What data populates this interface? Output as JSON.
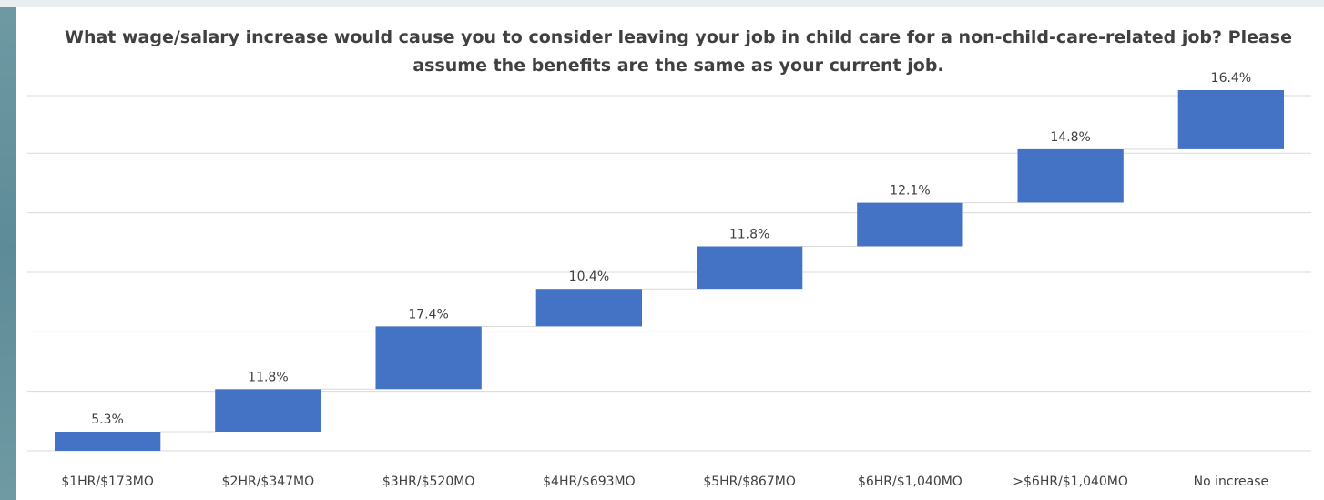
{
  "chart_data": {
    "type": "waterfall",
    "title": "What wage/salary increase would cause you to consider leaving your job in child care for a non-child-care-related job? Please assume the benefits are the same as your current job.",
    "categories": [
      "$1HR/$173MO",
      "$2HR/$347MO",
      "$3HR/$520MO",
      "$4HR/$693MO",
      "$5HR/$867MO",
      "$6HR/$1,040MO",
      ">$6HR/$1,040MO",
      "No increase"
    ],
    "values": [
      5.3,
      11.8,
      17.4,
      10.4,
      11.8,
      12.1,
      14.8,
      16.4
    ],
    "data_labels": [
      "5.3%",
      "11.8%",
      "17.4%",
      "10.4%",
      "11.8%",
      "12.1%",
      "14.8%",
      "16.4%"
    ],
    "cumulative_start": [
      0,
      5.3,
      17.1,
      34.5,
      44.9,
      56.7,
      68.8,
      83.6
    ],
    "ylim": [
      0,
      100
    ],
    "grid": true,
    "legend": "none",
    "colors": {
      "bar": "#4472c4",
      "grid": "#d9d9d9",
      "text": "#404040"
    }
  }
}
